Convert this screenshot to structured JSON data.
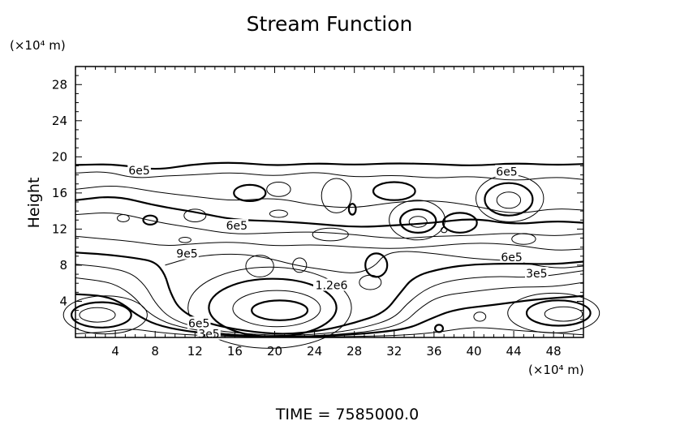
{
  "chart_data": {
    "type": "contour",
    "title": "Stream Function",
    "ylabel": "Height",
    "y_unit_label": "(×10⁴ m)",
    "x_unit_label": "(×10⁴ m)",
    "footer": "TIME  =  7585000.0",
    "x_ticks": [
      "4",
      "8",
      "12",
      "16",
      "20",
      "24",
      "28",
      "32",
      "36",
      "40",
      "44",
      "48"
    ],
    "y_ticks": [
      "4",
      "8",
      "12",
      "16",
      "20",
      "24",
      "28"
    ],
    "xlim": [
      0,
      51
    ],
    "ylim": [
      0,
      30
    ],
    "contour_labels": [
      {
        "text": "6e5",
        "x": 6.4,
        "y": 18.4
      },
      {
        "text": "6e5",
        "x": 43.3,
        "y": 18.3
      },
      {
        "text": "6e5",
        "x": 16.2,
        "y": 12.3
      },
      {
        "text": "9e5",
        "x": 11.2,
        "y": 9.2
      },
      {
        "text": "6e5",
        "x": 43.8,
        "y": 8.8
      },
      {
        "text": "3e5",
        "x": 46.3,
        "y": 7.0
      },
      {
        "text": "1.2e6",
        "x": 25.7,
        "y": 5.7
      },
      {
        "text": "6e5",
        "x": 12.4,
        "y": 1.5
      },
      {
        "text": "3e5",
        "x": 13.4,
        "y": 0.3
      }
    ],
    "contours": [
      {
        "w": "thick",
        "pts": [
          [
            0,
            19.1
          ],
          [
            4,
            19.2
          ],
          [
            8,
            18.5
          ],
          [
            12,
            19.2
          ],
          [
            16,
            19.4
          ],
          [
            20,
            19.0
          ],
          [
            24,
            19.3
          ],
          [
            28,
            19.1
          ],
          [
            32,
            19.3
          ],
          [
            36,
            19.2
          ],
          [
            40,
            19.0
          ],
          [
            44,
            19.3
          ],
          [
            48,
            19.1
          ],
          [
            51,
            19.2
          ]
        ]
      },
      {
        "w": "thin",
        "pts": [
          [
            0,
            18.2
          ],
          [
            3,
            18.4
          ],
          [
            6,
            17.6
          ],
          [
            9,
            17.9
          ],
          [
            12,
            18.0
          ],
          [
            16,
            18.3
          ],
          [
            20,
            17.8
          ],
          [
            24,
            18.4
          ],
          [
            28,
            17.7
          ],
          [
            32,
            18.0
          ],
          [
            36,
            17.6
          ],
          [
            40,
            17.9
          ],
          [
            44,
            17.3
          ],
          [
            48,
            17.8
          ],
          [
            51,
            17.5
          ]
        ]
      },
      {
        "w": "thin",
        "pts": [
          [
            0,
            16.4
          ],
          [
            4,
            16.9
          ],
          [
            8,
            16.1
          ],
          [
            12,
            15.6
          ],
          [
            16,
            15.1
          ],
          [
            20,
            15.5
          ],
          [
            24,
            14.6
          ],
          [
            28,
            14.3
          ],
          [
            32,
            15.0
          ],
          [
            36,
            15.2
          ],
          [
            40,
            14.6
          ],
          [
            44,
            13.6
          ],
          [
            48,
            14.3
          ],
          [
            51,
            14.1
          ]
        ]
      },
      {
        "w": "thick",
        "pts": [
          [
            0,
            15.2
          ],
          [
            4,
            15.7
          ],
          [
            8,
            14.6
          ],
          [
            12,
            13.9
          ],
          [
            16,
            13.0
          ],
          [
            20,
            12.9
          ],
          [
            24,
            12.6
          ],
          [
            28,
            12.2
          ],
          [
            32,
            12.4
          ],
          [
            36,
            12.7
          ],
          [
            40,
            13.2
          ],
          [
            44,
            12.5
          ],
          [
            48,
            12.9
          ],
          [
            51,
            12.7
          ]
        ]
      },
      {
        "w": "thin",
        "pts": [
          [
            0,
            13.6
          ],
          [
            4,
            13.9
          ],
          [
            8,
            12.8
          ],
          [
            12,
            12.1
          ],
          [
            16,
            11.4
          ],
          [
            20,
            11.6
          ],
          [
            24,
            11.7
          ],
          [
            28,
            11.4
          ],
          [
            32,
            10.9
          ],
          [
            36,
            11.2
          ],
          [
            40,
            11.3
          ],
          [
            44,
            11.6
          ],
          [
            48,
            11.2
          ],
          [
            51,
            11.5
          ]
        ]
      },
      {
        "w": "thin",
        "pts": [
          [
            0,
            11.2
          ],
          [
            3,
            10.9
          ],
          [
            6,
            10.6
          ],
          [
            9,
            10.1
          ],
          [
            12,
            10.4
          ],
          [
            16,
            10.6
          ],
          [
            20,
            10.1
          ],
          [
            24,
            10.3
          ],
          [
            28,
            10.0
          ],
          [
            32,
            9.8
          ],
          [
            36,
            10.1
          ],
          [
            40,
            10.5
          ],
          [
            44,
            10.3
          ],
          [
            48,
            9.6
          ],
          [
            51,
            9.8
          ]
        ]
      },
      {
        "w": "thick",
        "pts": [
          [
            0,
            9.4
          ],
          [
            3,
            9.2
          ],
          [
            6,
            8.8
          ],
          [
            8,
            8.4
          ],
          [
            9,
            7.0
          ],
          [
            9.5,
            5.0
          ],
          [
            10.5,
            3.0
          ],
          [
            13,
            1.6
          ],
          [
            17,
            0.7
          ],
          [
            21,
            0.3
          ],
          [
            25,
            0.8
          ],
          [
            28,
            1.6
          ],
          [
            31,
            2.7
          ],
          [
            32.5,
            4.8
          ],
          [
            34,
            6.8
          ],
          [
            37,
            7.7
          ],
          [
            40,
            8.1
          ],
          [
            44,
            8.2
          ],
          [
            48,
            8.1
          ],
          [
            51,
            8.4
          ]
        ]
      },
      {
        "w": "thin",
        "pts": [
          [
            0,
            8.1
          ],
          [
            3,
            7.8
          ],
          [
            5.5,
            7.2
          ],
          [
            7,
            5.8
          ],
          [
            8,
            3.8
          ],
          [
            9.5,
            2.1
          ],
          [
            12,
            1.1
          ],
          [
            16,
            0.5
          ],
          [
            21,
            0.15
          ],
          [
            26,
            0.5
          ],
          [
            29,
            1.1
          ],
          [
            32,
            2.1
          ],
          [
            33.5,
            4.0
          ],
          [
            35.5,
            5.6
          ],
          [
            38,
            6.4
          ],
          [
            42,
            6.8
          ],
          [
            46,
            6.6
          ],
          [
            51,
            7.4
          ]
        ]
      },
      {
        "w": "thin",
        "pts": [
          [
            0,
            6.6
          ],
          [
            3,
            6.2
          ],
          [
            4.5,
            5.6
          ],
          [
            6,
            4.4
          ],
          [
            7,
            3.0
          ],
          [
            9,
            1.6
          ],
          [
            12,
            0.8
          ],
          [
            16,
            0.3
          ],
          [
            21,
            0.05
          ],
          [
            26,
            0.3
          ],
          [
            30,
            0.7
          ],
          [
            33,
            1.6
          ],
          [
            34.5,
            3.2
          ],
          [
            36.5,
            4.6
          ],
          [
            40,
            5.1
          ],
          [
            44,
            5.6
          ],
          [
            48,
            5.6
          ],
          [
            51,
            6.1
          ]
        ]
      },
      {
        "w": "thick",
        "pts": [
          [
            0,
            4.8
          ],
          [
            3,
            4.6
          ],
          [
            4.8,
            3.7
          ],
          [
            6,
            2.6
          ],
          [
            8,
            1.4
          ],
          [
            11,
            0.7
          ],
          [
            15,
            0.25
          ],
          [
            20,
            0.05
          ],
          [
            25,
            0.15
          ],
          [
            30,
            0.5
          ],
          [
            33.5,
            1.0
          ],
          [
            35.5,
            2.0
          ],
          [
            38,
            3.1
          ],
          [
            42,
            3.6
          ],
          [
            46,
            4.2
          ],
          [
            51,
            4.6
          ]
        ]
      },
      {
        "w": "thin",
        "pts": [
          [
            0,
            0.4
          ],
          [
            3,
            0.6
          ],
          [
            5.5,
            1.0
          ],
          [
            8,
            0.6
          ],
          [
            11,
            0.3
          ],
          [
            16,
            0.1
          ],
          [
            22,
            0.05
          ],
          [
            28,
            0.1
          ],
          [
            32,
            0.2
          ],
          [
            36,
            0.5
          ],
          [
            40,
            1.2
          ],
          [
            44,
            0.8
          ],
          [
            48,
            0.5
          ],
          [
            51,
            0.3
          ]
        ]
      },
      {
        "w": "thin",
        "pts": [
          [
            9,
            8.0
          ],
          [
            12,
            9.0
          ],
          [
            16,
            9.3
          ],
          [
            19,
            8.9
          ],
          [
            22,
            8.0
          ],
          [
            25,
            7.5
          ],
          [
            28,
            7.0
          ],
          [
            30,
            7.8
          ],
          [
            31,
            9.2
          ],
          [
            33,
            9.6
          ],
          [
            36,
            9.3
          ],
          [
            40,
            8.7
          ],
          [
            44,
            8.5
          ],
          [
            48,
            7.6
          ],
          [
            51,
            7.9
          ]
        ]
      }
    ],
    "closed_contours": [
      {
        "w": "thin",
        "c": [
          19.5,
          3.3
        ],
        "r": [
          8.2,
          4.5
        ]
      },
      {
        "w": "thick",
        "c": [
          19.8,
          3.3
        ],
        "r": [
          6.4,
          3.2
        ]
      },
      {
        "w": "thin",
        "c": [
          20.2,
          3.2
        ],
        "r": [
          4.4,
          2.0
        ]
      },
      {
        "w": "thick",
        "c": [
          20.5,
          3.0
        ],
        "r": [
          2.8,
          1.1
        ]
      },
      {
        "w": "thin",
        "c": [
          3.0,
          2.5
        ],
        "r": [
          4.2,
          2.1
        ]
      },
      {
        "w": "thick",
        "c": [
          2.6,
          2.5
        ],
        "r": [
          3.0,
          1.4
        ]
      },
      {
        "w": "thin",
        "c": [
          2.2,
          2.5
        ],
        "r": [
          1.8,
          0.8
        ]
      },
      {
        "w": "thin",
        "c": [
          48.0,
          2.7
        ],
        "r": [
          4.6,
          2.2
        ]
      },
      {
        "w": "thick",
        "c": [
          48.5,
          2.7
        ],
        "r": [
          3.2,
          1.4
        ]
      },
      {
        "w": "thin",
        "c": [
          49.0,
          2.6
        ],
        "r": [
          1.9,
          0.8
        ]
      },
      {
        "w": "thin",
        "c": [
          43.6,
          15.4
        ],
        "r": [
          3.4,
          2.6
        ]
      },
      {
        "w": "thick",
        "c": [
          43.5,
          15.3
        ],
        "r": [
          2.4,
          1.8
        ]
      },
      {
        "w": "thin",
        "c": [
          43.5,
          15.2
        ],
        "r": [
          1.2,
          0.9
        ]
      },
      {
        "w": "thin",
        "c": [
          34.3,
          13.0
        ],
        "r": [
          2.8,
          2.2
        ]
      },
      {
        "w": "thick",
        "c": [
          34.4,
          12.9
        ],
        "r": [
          1.8,
          1.3
        ]
      },
      {
        "w": "thin",
        "c": [
          34.4,
          12.8
        ],
        "r": [
          0.9,
          0.6
        ]
      },
      {
        "w": "thick",
        "c": [
          17.5,
          16.0
        ],
        "r": [
          1.6,
          0.9
        ]
      },
      {
        "w": "thin",
        "c": [
          26.2,
          15.7
        ],
        "r": [
          1.5,
          1.9
        ]
      },
      {
        "w": "thick",
        "c": [
          32.0,
          16.2
        ],
        "r": [
          2.1,
          1.0
        ]
      },
      {
        "w": "thin",
        "c": [
          25.6,
          11.4
        ],
        "r": [
          1.8,
          0.7
        ]
      },
      {
        "w": "thick",
        "c": [
          38.6,
          12.7
        ],
        "r": [
          1.7,
          1.1
        ]
      },
      {
        "w": "thin",
        "c": [
          20.4,
          16.4
        ],
        "r": [
          1.2,
          0.8
        ]
      },
      {
        "w": "thin",
        "c": [
          12.0,
          13.5
        ],
        "r": [
          1.1,
          0.7
        ]
      },
      {
        "w": "thick",
        "c": [
          7.5,
          13.0
        ],
        "r": [
          0.7,
          0.5
        ]
      },
      {
        "w": "thin",
        "c": [
          4.8,
          13.2
        ],
        "r": [
          0.6,
          0.4
        ]
      },
      {
        "w": "thin",
        "c": [
          18.5,
          7.9
        ],
        "r": [
          1.4,
          1.2
        ]
      },
      {
        "w": "thin",
        "c": [
          22.5,
          8.0
        ],
        "r": [
          0.7,
          0.8
        ]
      },
      {
        "w": "thick",
        "c": [
          30.2,
          8.0
        ],
        "r": [
          1.1,
          1.3
        ]
      },
      {
        "w": "thin",
        "c": [
          29.6,
          6.1
        ],
        "r": [
          1.1,
          0.8
        ]
      },
      {
        "w": "thick",
        "c": [
          27.8,
          14.2
        ],
        "r": [
          0.35,
          0.6
        ]
      },
      {
        "w": "thin",
        "c": [
          20.4,
          13.7
        ],
        "r": [
          0.9,
          0.4
        ]
      },
      {
        "w": "thin",
        "c": [
          11.0,
          10.8
        ],
        "r": [
          0.6,
          0.3
        ]
      },
      {
        "w": "thin",
        "c": [
          40.6,
          2.3
        ],
        "r": [
          0.6,
          0.5
        ]
      },
      {
        "w": "thick",
        "c": [
          36.5,
          1.0
        ],
        "r": [
          0.4,
          0.4
        ]
      },
      {
        "w": "thin",
        "c": [
          45.0,
          10.9
        ],
        "r": [
          1.2,
          0.6
        ]
      },
      {
        "w": "thin",
        "c": [
          37.0,
          11.9
        ],
        "r": [
          0.3,
          0.3
        ]
      }
    ]
  }
}
